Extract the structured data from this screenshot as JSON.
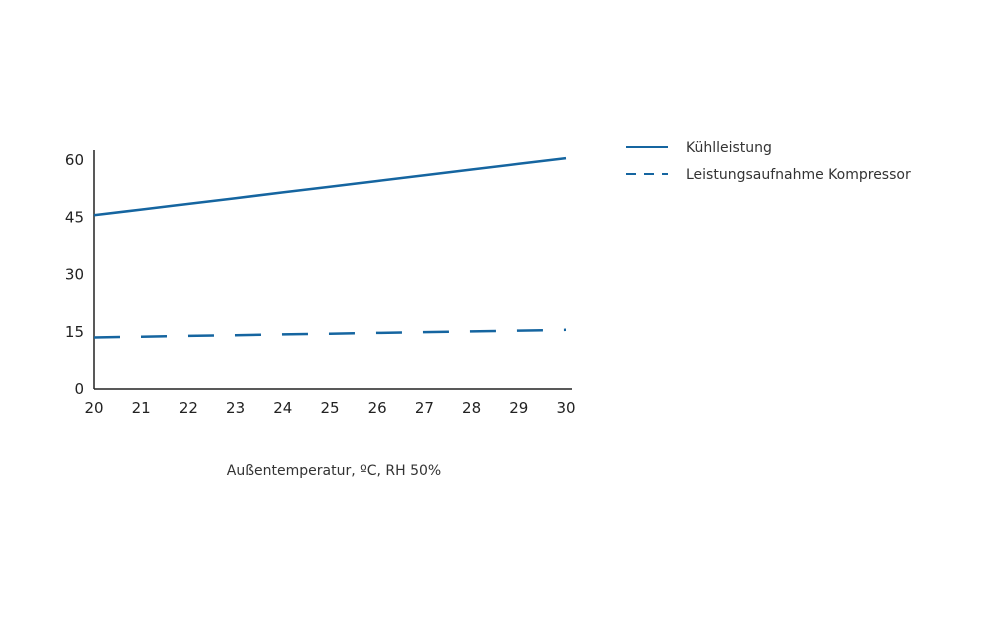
{
  "chart_data": {
    "type": "line",
    "title": "",
    "xlabel": "Außentemperatur, ºC, RH 50%",
    "ylabel": "",
    "x": [
      20,
      21,
      22,
      23,
      24,
      25,
      26,
      27,
      28,
      29,
      30
    ],
    "x_ticks": [
      "20",
      "21",
      "22",
      "23",
      "24",
      "25",
      "26",
      "27",
      "28",
      "29",
      "30"
    ],
    "y_ticks": [
      "0",
      "15",
      "30",
      "45",
      "60"
    ],
    "xlim": [
      20,
      30
    ],
    "ylim": [
      0,
      62
    ],
    "grid": false,
    "legend_position": "top-right, outside plot",
    "series": [
      {
        "name": "Kühlleistung",
        "style": "solid",
        "color": "#1565a0",
        "values": [
          45.5,
          47.0,
          48.5,
          50.0,
          51.5,
          53.0,
          54.5,
          56.0,
          57.5,
          59.0,
          60.5
        ]
      },
      {
        "name": "Leistungsaufnahme Kompressor",
        "style": "dashed",
        "color": "#1565a0",
        "values": [
          13.5,
          13.7,
          13.9,
          14.1,
          14.3,
          14.5,
          14.7,
          14.9,
          15.1,
          15.3,
          15.5
        ]
      }
    ],
    "axis_color": "#222222"
  }
}
